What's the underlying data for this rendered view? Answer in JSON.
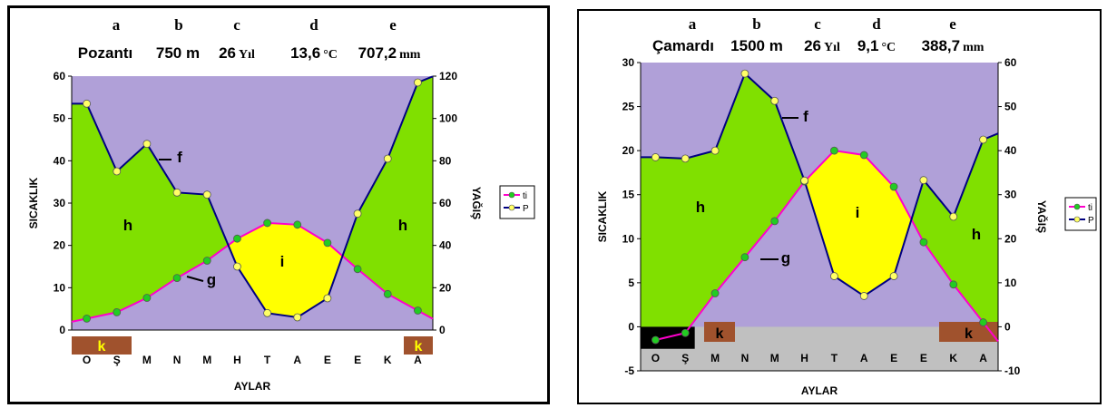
{
  "chart_data": [
    {
      "type": "climate-diagram",
      "header": {
        "letters": [
          "a",
          "b",
          "c",
          "d",
          "e"
        ],
        "station": "Pozantı",
        "elevation": "750 m",
        "years": "26",
        "years_unit": "Yıl",
        "temperature": "13,6",
        "temperature_unit": "°C",
        "precipitation": "707,2",
        "precipitation_unit": "mm"
      },
      "xlabel": "AYLAR",
      "ylabel_left": "SICAKLIK",
      "ylabel_right": "YAĞIŞ",
      "categories": [
        "O",
        "Ş",
        "M",
        "N",
        "M",
        "H",
        "T",
        "A",
        "E",
        "E",
        "K",
        "A"
      ],
      "ylim_left": [
        0,
        60
      ],
      "ylim_right": [
        0,
        120
      ],
      "yticks_left": [
        0,
        10,
        20,
        30,
        40,
        50,
        60
      ],
      "yticks_right": [
        0,
        20,
        40,
        60,
        80,
        100,
        120
      ],
      "series": [
        {
          "name": "ti",
          "axis": "left",
          "color": "#ff00cc",
          "marker_color": "#22cc22",
          "values": [
            2.7,
            4.2,
            7.6,
            12.3,
            16.4,
            21.6,
            25.3,
            24.9,
            20.6,
            14.4,
            8.5,
            4.6
          ]
        },
        {
          "name": "P",
          "axis": "right",
          "color": "#000080",
          "marker_color": "#ffff66",
          "values": [
            107,
            75,
            88,
            65,
            64,
            30,
            8,
            6,
            15,
            55,
            81,
            117
          ]
        }
      ],
      "annotations": [
        "f",
        "g",
        "h",
        "h",
        "i"
      ],
      "k_boxes": [
        "k",
        "k"
      ],
      "colors": {
        "humid": "#80e000",
        "dry": "#ffff00",
        "background": "#b0a0d8",
        "k_box": "#a0522d",
        "k_text": "#ffff00"
      },
      "legend_position": "right"
    },
    {
      "type": "climate-diagram",
      "header": {
        "letters": [
          "a",
          "b",
          "c",
          "d",
          "e"
        ],
        "station": "Çamardı",
        "elevation": "1500 m",
        "years": "26",
        "years_unit": "Yıl",
        "temperature": "9,1",
        "temperature_unit": "°C",
        "precipitation": "388,7",
        "precipitation_unit": "mm"
      },
      "xlabel": "AYLAR",
      "ylabel_left": "SICAKLIK",
      "ylabel_right": "YAĞIŞ",
      "categories": [
        "O",
        "Ş",
        "M",
        "N",
        "M",
        "H",
        "T",
        "A",
        "E",
        "E",
        "K",
        "A"
      ],
      "ylim_left": [
        -5,
        30
      ],
      "ylim_right": [
        -10,
        60
      ],
      "yticks_left": [
        -5,
        0,
        5,
        10,
        15,
        20,
        25,
        30
      ],
      "yticks_right": [
        -10,
        0,
        10,
        20,
        30,
        40,
        50,
        60
      ],
      "series": [
        {
          "name": "ti",
          "axis": "left",
          "color": "#ff00cc",
          "marker_color": "#22cc22",
          "values": [
            -1.5,
            -0.7,
            3.8,
            7.9,
            12.0,
            16.5,
            20.0,
            19.5,
            15.9,
            9.6,
            4.8,
            0.5
          ]
        },
        {
          "name": "P",
          "axis": "right",
          "color": "#000080",
          "marker_color": "#ffff66",
          "values": [
            38.5,
            38.2,
            40,
            57.5,
            51.3,
            33.2,
            11.5,
            7,
            11.5,
            33.3,
            25,
            42.5
          ]
        }
      ],
      "annotations": [
        "f",
        "g",
        "h",
        "h",
        "i"
      ],
      "k_boxes": [
        "k",
        "k"
      ],
      "colors": {
        "humid": "#80e000",
        "dry": "#ffff00",
        "background": "#b0a0d8",
        "k_box": "#a0522d",
        "k_text": "#000000",
        "frost": "#000000",
        "below_zero": "#c0c0c0"
      },
      "legend_position": "right"
    }
  ]
}
